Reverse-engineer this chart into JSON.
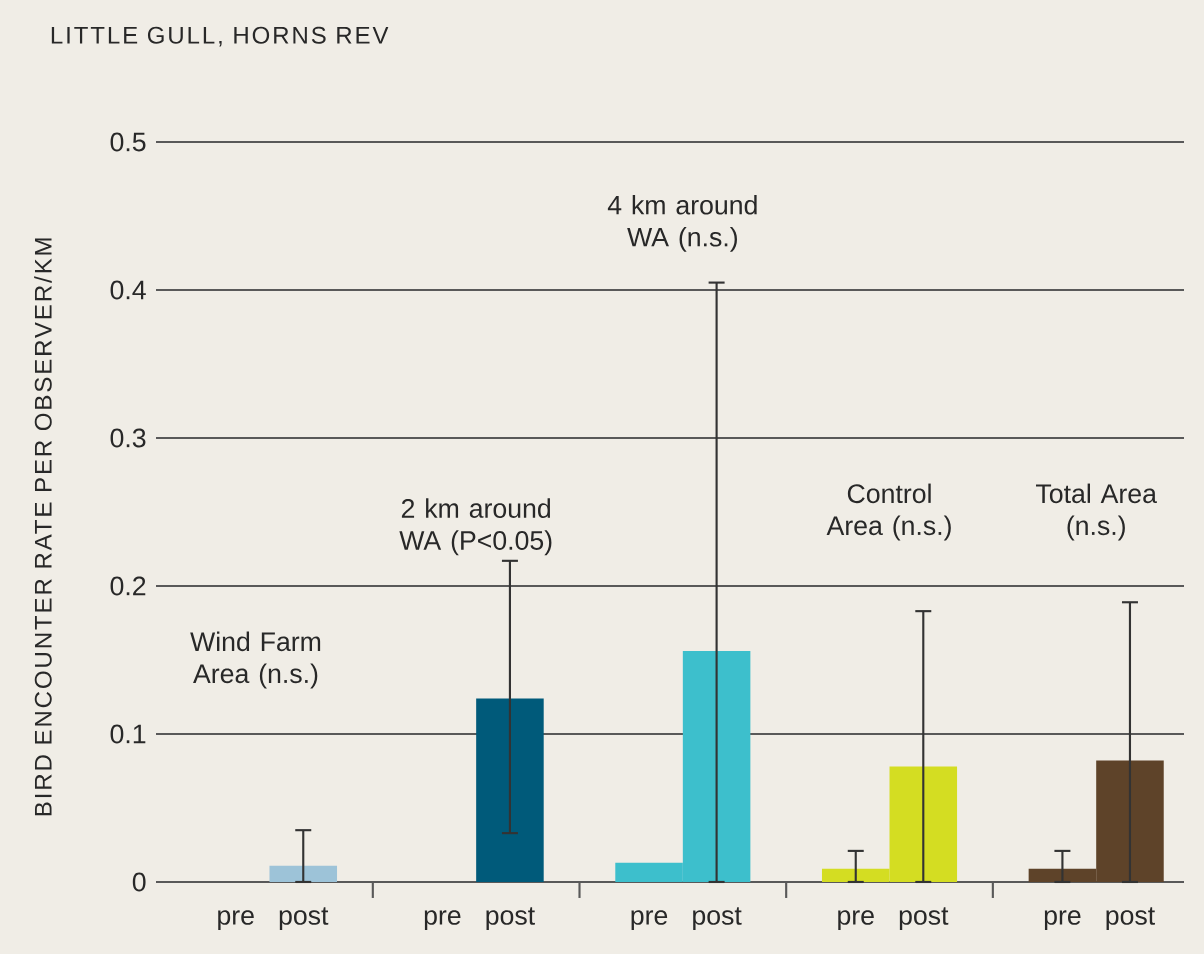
{
  "chart_data": {
    "type": "bar",
    "title": "LITTLE GULL, HORNS REV",
    "ylabel": "BIRD ENCOUNTER RATE PER OBSERVER/KM",
    "categories": [
      "pre",
      "post",
      "pre",
      "post",
      "pre",
      "post",
      "pre",
      "post",
      "pre",
      "post"
    ],
    "values": [
      null,
      0.011,
      null,
      0.124,
      0.013,
      0.156,
      0.009,
      0.078,
      0.009,
      0.082
    ],
    "errors": [
      null,
      [
        0,
        0.035
      ],
      null,
      [
        0.033,
        0.217
      ],
      null,
      [
        0,
        0.405
      ],
      [
        0,
        0.021
      ],
      [
        0,
        0.183
      ],
      [
        0,
        0.021
      ],
      [
        0,
        0.189
      ]
    ],
    "colors": [
      "#9dc3d8",
      "#9dc3d8",
      "#005a7a",
      "#005a7a",
      "#3dbfcc",
      "#3dbfcc",
      "#d4dd22",
      "#d4dd22",
      "#5e4329",
      "#5e4329"
    ],
    "ylim": [
      0,
      0.5
    ],
    "yticks": [
      0,
      0.1,
      0.2,
      0.3,
      0.4,
      0.5
    ],
    "grid": "y",
    "annotations": [
      "Wind Farm Area (n.s.)",
      "2 km around WA (P<0.05)",
      "4 km around WA (n.s.)",
      "Control Area (n.s.)",
      "Total Area (n.s.)"
    ]
  }
}
